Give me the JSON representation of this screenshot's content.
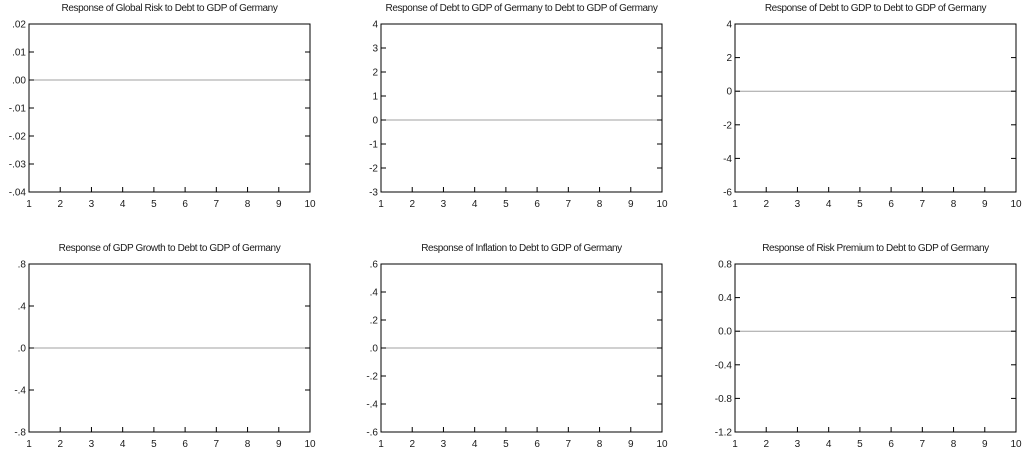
{
  "chart_data": [
    {
      "type": "line",
      "title": "Response of Global Risk to Debt to GDP of Germany",
      "x": [
        1,
        2,
        3,
        4,
        5,
        6,
        7,
        8,
        9,
        10
      ],
      "xticks": [
        "1",
        "2",
        "3",
        "4",
        "5",
        "6",
        "7",
        "8",
        "9",
        "10"
      ],
      "xlim": [
        1,
        10
      ],
      "ylim": [
        -0.04,
        0.02
      ],
      "yticks": [
        ".02",
        ".01",
        ".00",
        "-.01",
        "-.02",
        "-.03",
        "-.04"
      ],
      "ytick_values": [
        0.02,
        0.01,
        0.0,
        -0.01,
        -0.02,
        -0.03,
        -0.04
      ],
      "series": [
        {
          "values": [
            0,
            0,
            0,
            0,
            0,
            0,
            0,
            0,
            0,
            0
          ]
        }
      ],
      "grid": false,
      "zero_line": true
    },
    {
      "type": "line",
      "title": "Response of Debt to GDP of Germany to Debt to GDP of Germany",
      "x": [
        1,
        2,
        3,
        4,
        5,
        6,
        7,
        8,
        9,
        10
      ],
      "xticks": [
        "1",
        "2",
        "3",
        "4",
        "5",
        "6",
        "7",
        "8",
        "9",
        "10"
      ],
      "xlim": [
        1,
        10
      ],
      "ylim": [
        -3,
        4
      ],
      "yticks": [
        "4",
        "3",
        "2",
        "1",
        "0",
        "-1",
        "-2",
        "-3"
      ],
      "ytick_values": [
        4,
        3,
        2,
        1,
        0,
        -1,
        -2,
        -3
      ],
      "series": [
        {
          "values": [
            0,
            0,
            0,
            0,
            0,
            0,
            0,
            0,
            0,
            0
          ]
        }
      ],
      "grid": false,
      "zero_line": true
    },
    {
      "type": "line",
      "title": "Response of Debt to GDP to Debt to GDP of Germany",
      "x": [
        1,
        2,
        3,
        4,
        5,
        6,
        7,
        8,
        9,
        10
      ],
      "xticks": [
        "1",
        "2",
        "3",
        "4",
        "5",
        "6",
        "7",
        "8",
        "9",
        "10"
      ],
      "xlim": [
        1,
        10
      ],
      "ylim": [
        -6,
        4
      ],
      "yticks": [
        "4",
        "2",
        "0",
        "-2",
        "-4",
        "-6"
      ],
      "ytick_values": [
        4,
        2,
        0,
        -2,
        -4,
        -6
      ],
      "series": [
        {
          "values": [
            0,
            0,
            0,
            0,
            0,
            0,
            0,
            0,
            0,
            0
          ]
        }
      ],
      "grid": false,
      "zero_line": true
    },
    {
      "type": "line",
      "title": "Response of GDP Growth to Debt to GDP of Germany",
      "x": [
        1,
        2,
        3,
        4,
        5,
        6,
        7,
        8,
        9,
        10
      ],
      "xticks": [
        "1",
        "2",
        "3",
        "4",
        "5",
        "6",
        "7",
        "8",
        "9",
        "10"
      ],
      "xlim": [
        1,
        10
      ],
      "ylim": [
        -0.8,
        0.8
      ],
      "yticks": [
        ".8",
        ".4",
        ".0",
        "-.4",
        "-.8"
      ],
      "ytick_values": [
        0.8,
        0.4,
        0.0,
        -0.4,
        -0.8
      ],
      "series": [
        {
          "values": [
            0,
            0,
            0,
            0,
            0,
            0,
            0,
            0,
            0,
            0
          ]
        }
      ],
      "grid": false,
      "zero_line": true
    },
    {
      "type": "line",
      "title": "Response of Inflation to Debt to GDP of Germany",
      "x": [
        1,
        2,
        3,
        4,
        5,
        6,
        7,
        8,
        9,
        10
      ],
      "xticks": [
        "1",
        "2",
        "3",
        "4",
        "5",
        "6",
        "7",
        "8",
        "9",
        "10"
      ],
      "xlim": [
        1,
        10
      ],
      "ylim": [
        -0.6,
        0.6
      ],
      "yticks": [
        ".6",
        ".4",
        ".2",
        ".0",
        "-.2",
        "-.4",
        "-.6"
      ],
      "ytick_values": [
        0.6,
        0.4,
        0.2,
        0.0,
        -0.2,
        -0.4,
        -0.6
      ],
      "series": [
        {
          "values": [
            0,
            0,
            0,
            0,
            0,
            0,
            0,
            0,
            0,
            0
          ]
        }
      ],
      "grid": false,
      "zero_line": true
    },
    {
      "type": "line",
      "title": "Response of Risk Premium to Debt to GDP of Germany",
      "x": [
        1,
        2,
        3,
        4,
        5,
        6,
        7,
        8,
        9,
        10
      ],
      "xticks": [
        "1",
        "2",
        "3",
        "4",
        "5",
        "6",
        "7",
        "8",
        "9",
        "10"
      ],
      "xlim": [
        1,
        10
      ],
      "ylim": [
        -1.2,
        0.8
      ],
      "yticks": [
        "0.8",
        "0.4",
        "0.0",
        "-0.4",
        "-0.8",
        "-1.2"
      ],
      "ytick_values": [
        0.8,
        0.4,
        0.0,
        -0.4,
        -0.8,
        -1.2
      ],
      "series": [
        {
          "values": [
            0,
            0,
            0,
            0,
            0,
            0,
            0,
            0,
            0,
            0
          ]
        }
      ],
      "grid": false,
      "zero_line": true
    }
  ]
}
